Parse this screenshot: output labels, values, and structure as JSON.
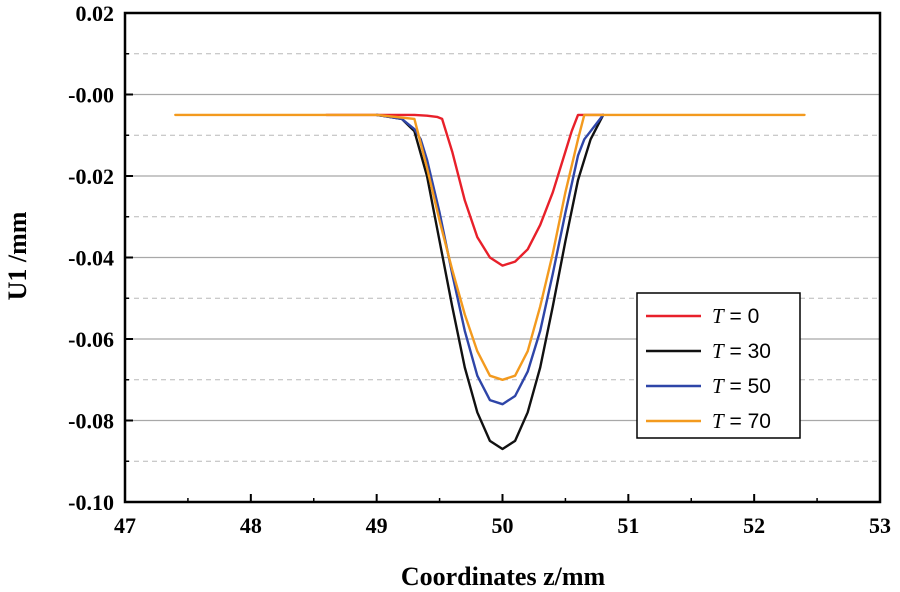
{
  "chart_data": {
    "type": "line",
    "title": "",
    "xlabel": "Coordinates z/mm",
    "ylabel": "U1 /mm",
    "xlim": [
      47,
      53
    ],
    "ylim": [
      -0.1,
      0.02
    ],
    "x_ticks": [
      47,
      48,
      49,
      50,
      51,
      52,
      53
    ],
    "x_tick_labels": [
      "47",
      "48",
      "49",
      "50",
      "51",
      "52",
      "53"
    ],
    "y_ticks": [
      0.02,
      0.0,
      -0.02,
      -0.04,
      -0.06,
      -0.08,
      -0.1
    ],
    "y_tick_labels": [
      "0.02",
      "-0.00",
      "-0.02",
      "-0.04",
      "-0.06",
      "-0.08",
      "-0.10"
    ],
    "grid": {
      "major": true,
      "minor": true
    },
    "legend_position": "bottom-right",
    "series": [
      {
        "name": "T = 0",
        "legend_prefix": "T",
        "legend_suffix": " = 0",
        "color": "#e8202a",
        "x": [
          48.6,
          49.0,
          49.3,
          49.4,
          49.48,
          49.52,
          49.6,
          49.7,
          49.8,
          49.9,
          50.0,
          50.1,
          50.2,
          50.3,
          50.4,
          50.5,
          50.55,
          50.6,
          50.8
        ],
        "y": [
          -0.005,
          -0.005,
          -0.005,
          -0.0052,
          -0.0055,
          -0.006,
          -0.014,
          -0.026,
          -0.035,
          -0.04,
          -0.042,
          -0.041,
          -0.038,
          -0.032,
          -0.024,
          -0.014,
          -0.009,
          -0.005,
          -0.005
        ]
      },
      {
        "name": "T = 30",
        "legend_prefix": "T",
        "legend_suffix": " = 30",
        "color": "#111111",
        "x": [
          49.0,
          49.2,
          49.3,
          49.4,
          49.5,
          49.6,
          49.7,
          49.8,
          49.9,
          50.0,
          50.1,
          50.2,
          50.3,
          50.4,
          50.5,
          50.6,
          50.7,
          50.8
        ],
        "y": [
          -0.005,
          -0.006,
          -0.009,
          -0.02,
          -0.036,
          -0.052,
          -0.067,
          -0.078,
          -0.085,
          -0.087,
          -0.085,
          -0.078,
          -0.067,
          -0.052,
          -0.036,
          -0.021,
          -0.011,
          -0.005
        ]
      },
      {
        "name": "T = 50",
        "legend_prefix": "T",
        "legend_suffix": " = 50",
        "color": "#2e45a8",
        "x": [
          49.0,
          49.2,
          49.3,
          49.35,
          49.4,
          49.5,
          49.6,
          49.7,
          49.8,
          49.9,
          50.0,
          50.1,
          50.2,
          50.3,
          50.4,
          50.5,
          50.6,
          50.65,
          50.7,
          50.8
        ],
        "y": [
          -0.005,
          -0.006,
          -0.0085,
          -0.011,
          -0.016,
          -0.029,
          -0.044,
          -0.058,
          -0.069,
          -0.075,
          -0.076,
          -0.074,
          -0.068,
          -0.058,
          -0.044,
          -0.029,
          -0.015,
          -0.011,
          -0.009,
          -0.005
        ]
      },
      {
        "name": "T = 70",
        "legend_prefix": "T",
        "legend_suffix": " = 70",
        "color": "#f39a1e",
        "x": [
          47.4,
          48.5,
          49.0,
          49.3,
          49.4,
          49.5,
          49.6,
          49.7,
          49.8,
          49.9,
          50.0,
          50.1,
          50.2,
          50.3,
          50.4,
          50.5,
          50.6,
          50.65,
          50.7,
          51.0,
          52.4
        ],
        "y": [
          -0.005,
          -0.005,
          -0.005,
          -0.006,
          -0.018,
          -0.031,
          -0.043,
          -0.054,
          -0.063,
          -0.069,
          -0.07,
          -0.069,
          -0.063,
          -0.052,
          -0.039,
          -0.024,
          -0.011,
          -0.005,
          -0.005,
          -0.005,
          -0.005
        ]
      }
    ]
  }
}
